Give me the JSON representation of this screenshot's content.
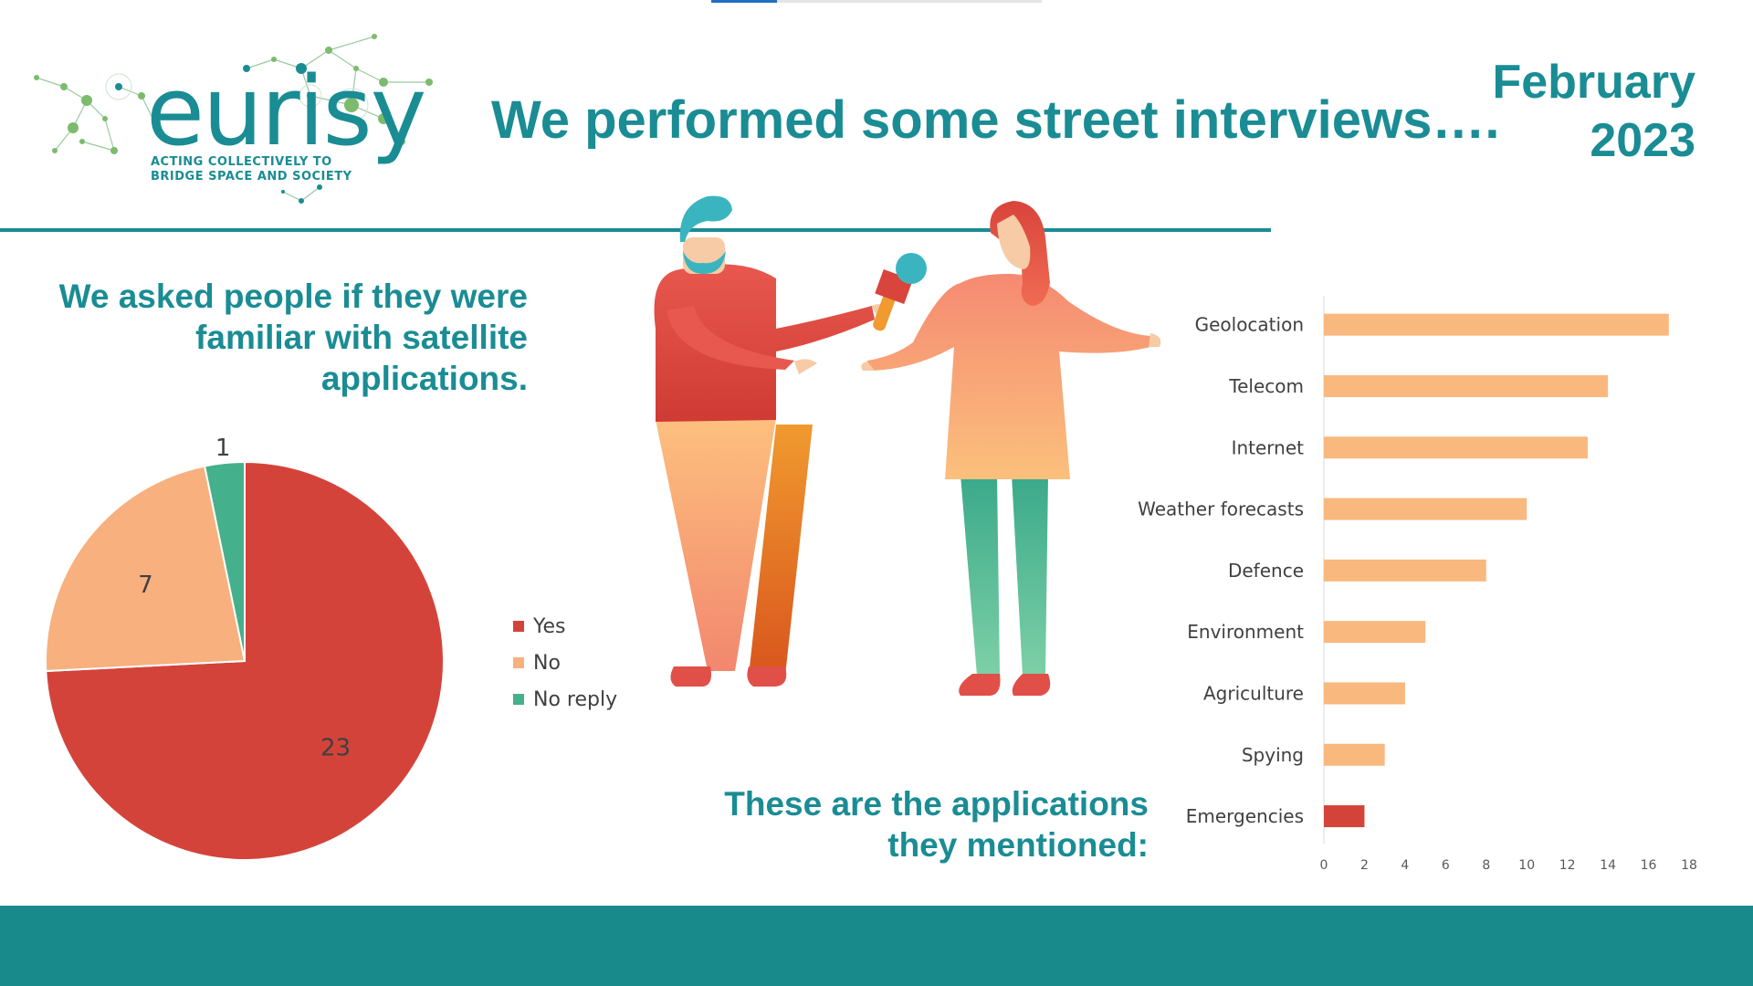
{
  "slide": {
    "progress": 0.2,
    "logo": {
      "word": "eurisy",
      "tagline_1": "ACTING COLLECTIVELY TO",
      "tagline_2": "BRIDGE SPACE AND SOCIETY"
    },
    "title": "We performed some street interviews….",
    "date_month": "February",
    "date_year": "2023",
    "pie_question": "We asked people if they were familiar with satellite applications.",
    "bar_caption": "These are the applications they mentioned:",
    "colors": {
      "accent": "#1a8c94",
      "yes": "#d4433a",
      "no": "#f8b07e",
      "no_reply": "#45b08c",
      "footer": "#198a8c"
    },
    "icons": [
      "eurisy-logo",
      "interviewer-illustration",
      "interviewee-illustration",
      "microphone-icon"
    ]
  },
  "chart_data": [
    {
      "type": "pie",
      "categories": [
        "Yes",
        "No",
        "No reply"
      ],
      "values": [
        23,
        7,
        1
      ],
      "colors": [
        "#d4433a",
        "#f8b07e",
        "#45b08c"
      ],
      "legend": "right"
    },
    {
      "type": "bar",
      "orientation": "horizontal",
      "categories": [
        "Geolocation",
        "Telecom",
        "Internet",
        "Weather forecasts",
        "Defence",
        "Environment",
        "Agriculture",
        "Spying",
        "Emergencies"
      ],
      "values": [
        17,
        14,
        13,
        10,
        8,
        5,
        4,
        3,
        2
      ],
      "colors": [
        "#f8b87e",
        "#f8b87e",
        "#f8b87e",
        "#f8b87e",
        "#f8b87e",
        "#f8b87e",
        "#f8b87e",
        "#f8b87e",
        "#d4433a"
      ],
      "xlim": [
        0,
        18
      ],
      "xticks": [
        0,
        2,
        4,
        6,
        8,
        10,
        12,
        14,
        16,
        18
      ],
      "grid": false
    }
  ]
}
